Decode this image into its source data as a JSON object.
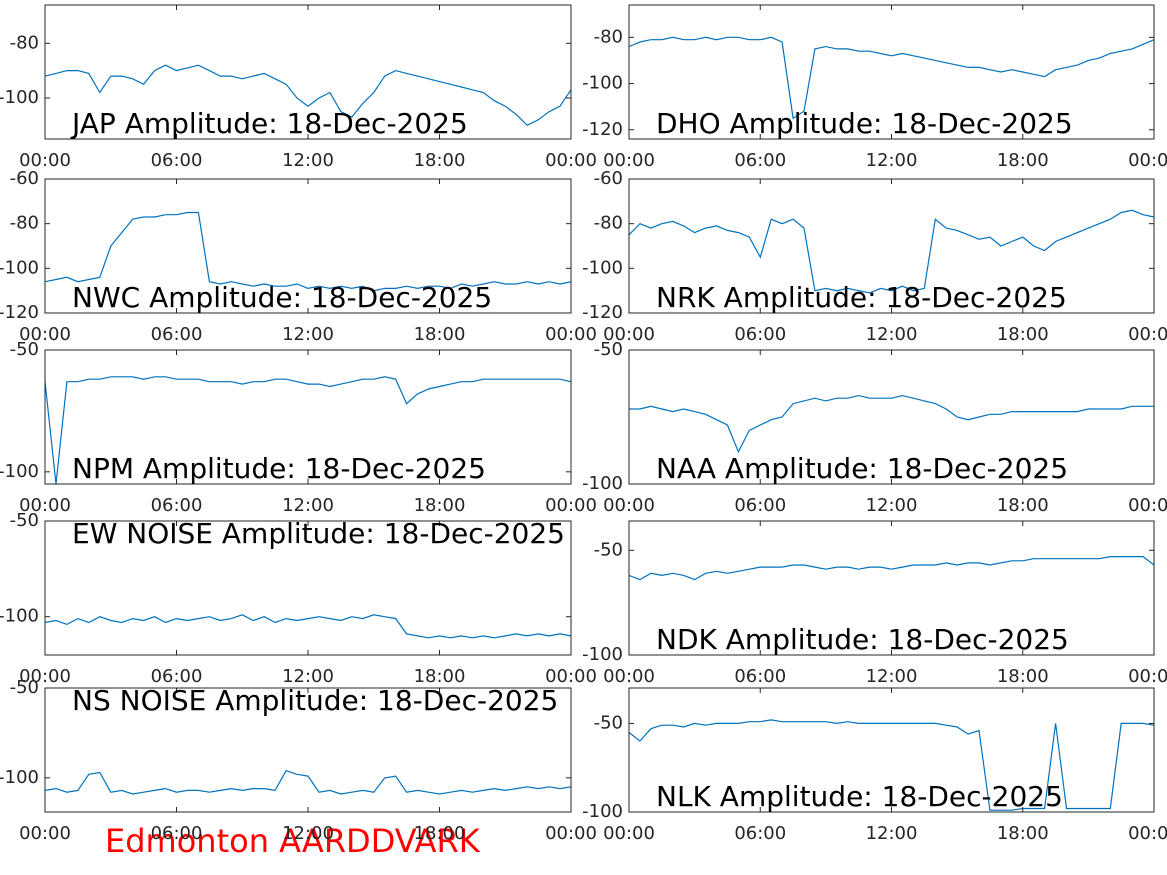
{
  "footer": "Edmonton AARDDVARK",
  "chart_data": [
    {
      "type": "line",
      "title": "JAP Amplitude: 18-Dec-2025",
      "color": "#0072bd",
      "x": [
        0,
        0.5,
        1,
        1.5,
        2,
        2.5,
        3,
        3.5,
        4,
        4.5,
        5,
        5.5,
        6,
        6.5,
        7,
        7.5,
        8,
        8.5,
        9,
        9.5,
        10,
        10.5,
        11,
        11.5,
        12,
        12.5,
        13,
        13.5,
        14,
        14.5,
        15,
        15.5,
        16,
        16.5,
        17,
        17.5,
        18,
        18.5,
        19,
        19.5,
        20,
        20.5,
        21,
        21.5,
        22,
        22.5,
        23,
        23.5,
        24
      ],
      "values": [
        -92,
        -91,
        -90,
        -90,
        -91,
        -98,
        -92,
        -92,
        -93,
        -95,
        -90,
        -88,
        -90,
        -89,
        -88,
        -90,
        -92,
        -92,
        -93,
        -92,
        -91,
        -93,
        -95,
        -100,
        -103,
        -100,
        -98,
        -105,
        -107,
        -102,
        -98,
        -92,
        -90,
        -91,
        -92,
        -93,
        -94,
        -95,
        -96,
        -97,
        -98,
        -101,
        -103,
        -106,
        -110,
        -108,
        -105,
        -103,
        -97
      ],
      "xlim": [
        0,
        24
      ],
      "xticks": [
        {
          "value": 0,
          "label": "00:00"
        },
        {
          "value": 6,
          "label": "06:00"
        },
        {
          "value": 12,
          "label": "12:00"
        },
        {
          "value": 18,
          "label": "18:00"
        },
        {
          "value": 24,
          "label": "00:00"
        }
      ],
      "ylim": [
        -115,
        -66
      ],
      "yticks": [
        -100,
        -80
      ]
    },
    {
      "type": "line",
      "title": "DHO Amplitude: 18-Dec-2025",
      "color": "#0072bd",
      "x": [
        0,
        0.5,
        1,
        1.5,
        2,
        2.5,
        3,
        3.5,
        4,
        4.5,
        5,
        5.5,
        6,
        6.5,
        7,
        7.5,
        8,
        8.5,
        9,
        9.5,
        10,
        10.5,
        11,
        11.5,
        12,
        12.5,
        13,
        13.5,
        14,
        14.5,
        15,
        15.5,
        16,
        16.5,
        17,
        17.5,
        18,
        18.5,
        19,
        19.5,
        20,
        20.5,
        21,
        21.5,
        22,
        22.5,
        23,
        23.5,
        24
      ],
      "values": [
        -84,
        -82,
        -81,
        -81,
        -80,
        -81,
        -81,
        -80,
        -81,
        -80,
        -80,
        -81,
        -81,
        -80,
        -82,
        -115,
        -112,
        -85,
        -84,
        -85,
        -85,
        -86,
        -86,
        -87,
        -88,
        -87,
        -88,
        -89,
        -90,
        -91,
        -92,
        -93,
        -93,
        -94,
        -95,
        -94,
        -95,
        -96,
        -97,
        -94,
        -93,
        -92,
        -90,
        -89,
        -87,
        -86,
        -85,
        -83,
        -81
      ],
      "xlim": [
        0,
        24
      ],
      "xticks": [
        {
          "value": 0,
          "label": "00:00"
        },
        {
          "value": 6,
          "label": "06:00"
        },
        {
          "value": 12,
          "label": "12:00"
        },
        {
          "value": 18,
          "label": "18:00"
        },
        {
          "value": 24,
          "label": "00:00"
        }
      ],
      "ylim": [
        -124,
        -66
      ],
      "yticks": [
        -120,
        -100,
        -80
      ]
    },
    {
      "type": "line",
      "title": "NWC Amplitude: 18-Dec-2025",
      "color": "#0072bd",
      "x": [
        0,
        0.5,
        1,
        1.5,
        2,
        2.5,
        3,
        3.5,
        4,
        4.5,
        5,
        5.5,
        6,
        6.5,
        7,
        7.5,
        8,
        8.5,
        9,
        9.5,
        10,
        10.5,
        11,
        11.5,
        12,
        12.5,
        13,
        13.5,
        14,
        14.5,
        15,
        15.5,
        16,
        16.5,
        17,
        17.5,
        18,
        18.5,
        19,
        19.5,
        20,
        20.5,
        21,
        21.5,
        22,
        22.5,
        23,
        23.5,
        24
      ],
      "values": [
        -106,
        -105,
        -104,
        -106,
        -105,
        -104,
        -90,
        -84,
        -78,
        -77,
        -77,
        -76,
        -76,
        -75,
        -75,
        -106,
        -107,
        -106,
        -107,
        -108,
        -107,
        -108,
        -108,
        -107,
        -109,
        -108,
        -109,
        -108,
        -109,
        -108,
        -110,
        -109,
        -109,
        -108,
        -109,
        -108,
        -108,
        -109,
        -107,
        -108,
        -107,
        -106,
        -107,
        -107,
        -106,
        -107,
        -106,
        -107,
        -106
      ],
      "xlim": [
        0,
        24
      ],
      "xticks": [
        {
          "value": 0,
          "label": "00:00"
        },
        {
          "value": 6,
          "label": "06:00"
        },
        {
          "value": 12,
          "label": "12:00"
        },
        {
          "value": 18,
          "label": "18:00"
        },
        {
          "value": 24,
          "label": "00:00"
        }
      ],
      "ylim": [
        -120,
        -60
      ],
      "yticks": [
        -120,
        -100,
        -80,
        -60
      ]
    },
    {
      "type": "line",
      "title": "NRK Amplitude: 18-Dec-2025",
      "color": "#0072bd",
      "x": [
        0,
        0.5,
        1,
        1.5,
        2,
        2.5,
        3,
        3.5,
        4,
        4.5,
        5,
        5.5,
        6,
        6.5,
        7,
        7.5,
        8,
        8.5,
        9,
        9.5,
        10,
        10.5,
        11,
        11.5,
        12,
        12.5,
        13,
        13.5,
        14,
        14.5,
        15,
        15.5,
        16,
        16.5,
        17,
        17.5,
        18,
        18.5,
        19,
        19.5,
        20,
        20.5,
        21,
        21.5,
        22,
        22.5,
        23,
        23.5,
        24
      ],
      "values": [
        -85,
        -80,
        -82,
        -80,
        -79,
        -81,
        -84,
        -82,
        -81,
        -83,
        -84,
        -86,
        -95,
        -78,
        -80,
        -78,
        -82,
        -110,
        -109,
        -110,
        -109,
        -110,
        -111,
        -109,
        -110,
        -108,
        -110,
        -109,
        -78,
        -82,
        -83,
        -85,
        -87,
        -86,
        -90,
        -88,
        -86,
        -90,
        -92,
        -88,
        -86,
        -84,
        -82,
        -80,
        -78,
        -75,
        -74,
        -76,
        -77
      ],
      "xlim": [
        0,
        24
      ],
      "xticks": [
        {
          "value": 0,
          "label": "00:00"
        },
        {
          "value": 6,
          "label": "06:00"
        },
        {
          "value": 12,
          "label": "12:00"
        },
        {
          "value": 18,
          "label": "18:00"
        },
        {
          "value": 24,
          "label": "00:00"
        }
      ],
      "ylim": [
        -120,
        -60
      ],
      "yticks": [
        -120,
        -100,
        -80,
        -60
      ]
    },
    {
      "type": "line",
      "title": "NPM Amplitude: 18-Dec-2025",
      "color": "#0072bd",
      "x": [
        0,
        0.5,
        1,
        1.5,
        2,
        2.5,
        3,
        3.5,
        4,
        4.5,
        5,
        5.5,
        6,
        6.5,
        7,
        7.5,
        8,
        8.5,
        9,
        9.5,
        10,
        10.5,
        11,
        11.5,
        12,
        12.5,
        13,
        13.5,
        14,
        14.5,
        15,
        15.5,
        16,
        16.5,
        17,
        17.5,
        18,
        18.5,
        19,
        19.5,
        20,
        20.5,
        21,
        21.5,
        22,
        22.5,
        23,
        23.5,
        24
      ],
      "values": [
        -63,
        -105,
        -63,
        -63,
        -62,
        -62,
        -61,
        -61,
        -61,
        -62,
        -61,
        -61,
        -62,
        -62,
        -62,
        -63,
        -63,
        -63,
        -64,
        -63,
        -63,
        -62,
        -62,
        -63,
        -64,
        -64,
        -65,
        -64,
        -63,
        -62,
        -62,
        -61,
        -62,
        -72,
        -68,
        -66,
        -65,
        -64,
        -63,
        -63,
        -62,
        -62,
        -62,
        -62,
        -62,
        -62,
        -62,
        -62,
        -63
      ],
      "xlim": [
        0,
        24
      ],
      "xticks": [
        {
          "value": 0,
          "label": "00:00"
        },
        {
          "value": 6,
          "label": "06:00"
        },
        {
          "value": 12,
          "label": "12:00"
        },
        {
          "value": 18,
          "label": "18:00"
        },
        {
          "value": 24,
          "label": "00:00"
        }
      ],
      "ylim": [
        -105,
        -50
      ],
      "yticks": [
        -100,
        -50
      ]
    },
    {
      "type": "line",
      "title": "NAA Amplitude: 18-Dec-2025",
      "color": "#0072bd",
      "x": [
        0,
        0.5,
        1,
        1.5,
        2,
        2.5,
        3,
        3.5,
        4,
        4.5,
        5,
        5.5,
        6,
        6.5,
        7,
        7.5,
        8,
        8.5,
        9,
        9.5,
        10,
        10.5,
        11,
        11.5,
        12,
        12.5,
        13,
        13.5,
        14,
        14.5,
        15,
        15.5,
        16,
        16.5,
        17,
        17.5,
        18,
        18.5,
        19,
        19.5,
        20,
        20.5,
        21,
        21.5,
        22,
        22.5,
        23,
        23.5,
        24
      ],
      "values": [
        -72,
        -72,
        -71,
        -72,
        -73,
        -72,
        -73,
        -74,
        -76,
        -78,
        -88,
        -80,
        -78,
        -76,
        -75,
        -70,
        -69,
        -68,
        -69,
        -68,
        -68,
        -67,
        -68,
        -68,
        -68,
        -67,
        -68,
        -69,
        -70,
        -72,
        -75,
        -76,
        -75,
        -74,
        -74,
        -73,
        -73,
        -73,
        -73,
        -73,
        -73,
        -73,
        -72,
        -72,
        -72,
        -72,
        -71,
        -71,
        -71
      ],
      "xlim": [
        0,
        24
      ],
      "xticks": [
        {
          "value": 0,
          "label": "00:00"
        },
        {
          "value": 6,
          "label": "06:00"
        },
        {
          "value": 12,
          "label": "12:00"
        },
        {
          "value": 18,
          "label": "18:00"
        },
        {
          "value": 24,
          "label": "00:00"
        }
      ],
      "ylim": [
        -100,
        -50
      ],
      "yticks": [
        -100,
        -50
      ]
    },
    {
      "type": "line",
      "title": "EW NOISE Amplitude: 18-Dec-2025",
      "color": "#0072bd",
      "x": [
        0,
        0.5,
        1,
        1.5,
        2,
        2.5,
        3,
        3.5,
        4,
        4.5,
        5,
        5.5,
        6,
        6.5,
        7,
        7.5,
        8,
        8.5,
        9,
        9.5,
        10,
        10.5,
        11,
        11.5,
        12,
        12.5,
        13,
        13.5,
        14,
        14.5,
        15,
        15.5,
        16,
        16.5,
        17,
        17.5,
        18,
        18.5,
        19,
        19.5,
        20,
        20.5,
        21,
        21.5,
        22,
        22.5,
        23,
        23.5,
        24
      ],
      "values": [
        -103,
        -102,
        -104,
        -101,
        -103,
        -100,
        -102,
        -103,
        -101,
        -102,
        -100,
        -103,
        -101,
        -102,
        -101,
        -100,
        -102,
        -101,
        -99,
        -102,
        -100,
        -103,
        -101,
        -102,
        -101,
        -100,
        -101,
        -102,
        -100,
        -101,
        -99,
        -100,
        -101,
        -109,
        -110,
        -111,
        -110,
        -111,
        -110,
        -111,
        -110,
        -111,
        -110,
        -109,
        -110,
        -109,
        -110,
        -109,
        -110
      ],
      "xlim": [
        0,
        24
      ],
      "xticks": [
        {
          "value": 0,
          "label": "00:00"
        },
        {
          "value": 6,
          "label": "06:00"
        },
        {
          "value": 12,
          "label": "12:00"
        },
        {
          "value": 18,
          "label": "18:00"
        },
        {
          "value": 24,
          "label": "00:00"
        }
      ],
      "ylim": [
        -120,
        -50
      ],
      "yticks": [
        -100,
        -50
      ]
    },
    {
      "type": "line",
      "title": "NDK Amplitude: 18-Dec-2025",
      "color": "#0072bd",
      "x": [
        0,
        0.5,
        1,
        1.5,
        2,
        2.5,
        3,
        3.5,
        4,
        4.5,
        5,
        5.5,
        6,
        6.5,
        7,
        7.5,
        8,
        8.5,
        9,
        9.5,
        10,
        10.5,
        11,
        11.5,
        12,
        12.5,
        13,
        13.5,
        14,
        14.5,
        15,
        15.5,
        16,
        16.5,
        17,
        17.5,
        18,
        18.5,
        19,
        19.5,
        20,
        20.5,
        21,
        21.5,
        22,
        22.5,
        23,
        23.5,
        24
      ],
      "values": [
        -62,
        -64,
        -61,
        -62,
        -61,
        -62,
        -64,
        -61,
        -60,
        -61,
        -60,
        -59,
        -58,
        -58,
        -58,
        -57,
        -57,
        -58,
        -59,
        -58,
        -58,
        -59,
        -58,
        -58,
        -59,
        -58,
        -57,
        -57,
        -57,
        -56,
        -57,
        -56,
        -56,
        -57,
        -56,
        -55,
        -55,
        -54,
        -54,
        -54,
        -54,
        -54,
        -54,
        -54,
        -53,
        -53,
        -53,
        -53,
        -57
      ],
      "xlim": [
        0,
        24
      ],
      "xticks": [
        {
          "value": 0,
          "label": "00:00"
        },
        {
          "value": 6,
          "label": "06:00"
        },
        {
          "value": 12,
          "label": "12:00"
        },
        {
          "value": 18,
          "label": "18:00"
        },
        {
          "value": 24,
          "label": "00:00"
        }
      ],
      "ylim": [
        -100,
        -36
      ],
      "yticks": [
        -100,
        -50
      ]
    },
    {
      "type": "line",
      "title": "NS NOISE Amplitude: 18-Dec-2025",
      "color": "#0072bd",
      "x": [
        0,
        0.5,
        1,
        1.5,
        2,
        2.5,
        3,
        3.5,
        4,
        4.5,
        5,
        5.5,
        6,
        6.5,
        7,
        7.5,
        8,
        8.5,
        9,
        9.5,
        10,
        10.5,
        11,
        11.5,
        12,
        12.5,
        13,
        13.5,
        14,
        14.5,
        15,
        15.5,
        16,
        16.5,
        17,
        17.5,
        18,
        18.5,
        19,
        19.5,
        20,
        20.5,
        21,
        21.5,
        22,
        22.5,
        23,
        23.5,
        24
      ],
      "values": [
        -107,
        -106,
        -108,
        -107,
        -98,
        -97,
        -108,
        -107,
        -109,
        -108,
        -107,
        -106,
        -108,
        -107,
        -107,
        -108,
        -107,
        -106,
        -107,
        -106,
        -106,
        -107,
        -96,
        -98,
        -99,
        -108,
        -107,
        -109,
        -108,
        -107,
        -108,
        -100,
        -99,
        -108,
        -107,
        -108,
        -109,
        -108,
        -107,
        -108,
        -107,
        -106,
        -107,
        -106,
        -105,
        -106,
        -105,
        -106,
        -105
      ],
      "xlim": [
        0,
        24
      ],
      "xticks": [
        {
          "value": 0,
          "label": "00:00"
        },
        {
          "value": 6,
          "label": "06:00"
        },
        {
          "value": 12,
          "label": "12:00"
        },
        {
          "value": 18,
          "label": "18:00"
        },
        {
          "value": 24,
          "label": "00:00"
        }
      ],
      "ylim": [
        -119,
        -50
      ],
      "yticks": [
        -100,
        -50
      ]
    },
    {
      "type": "line",
      "title": "NLK Amplitude: 18-Dec-2025",
      "color": "#0072bd",
      "x": [
        0,
        0.5,
        1,
        1.5,
        2,
        2.5,
        3,
        3.5,
        4,
        4.5,
        5,
        5.5,
        6,
        6.5,
        7,
        7.5,
        8,
        8.5,
        9,
        9.5,
        10,
        10.5,
        11,
        11.5,
        12,
        12.5,
        13,
        13.5,
        14,
        14.5,
        15,
        15.5,
        16,
        16.5,
        17,
        17.5,
        18,
        18.5,
        19,
        19.5,
        20,
        20.5,
        21,
        21.5,
        22,
        22.5,
        23,
        23.5,
        24
      ],
      "values": [
        -55,
        -60,
        -53,
        -51,
        -51,
        -52,
        -50,
        -51,
        -50,
        -50,
        -50,
        -49,
        -49,
        -48,
        -49,
        -49,
        -49,
        -49,
        -49,
        -50,
        -49,
        -50,
        -50,
        -50,
        -50,
        -50,
        -50,
        -50,
        -50,
        -51,
        -52,
        -56,
        -54,
        -99,
        -99,
        -99,
        -98,
        -98,
        -98,
        -50,
        -98,
        -98,
        -98,
        -98,
        -98,
        -50,
        -50,
        -50,
        -51
      ],
      "xlim": [
        0,
        24
      ],
      "xticks": [
        {
          "value": 0,
          "label": "00:00"
        },
        {
          "value": 6,
          "label": "06:00"
        },
        {
          "value": 12,
          "label": "12:00"
        },
        {
          "value": 18,
          "label": "18:00"
        },
        {
          "value": 24,
          "label": "00:00"
        }
      ],
      "ylim": [
        -100,
        -30
      ],
      "yticks": [
        -100,
        -50
      ]
    }
  ]
}
